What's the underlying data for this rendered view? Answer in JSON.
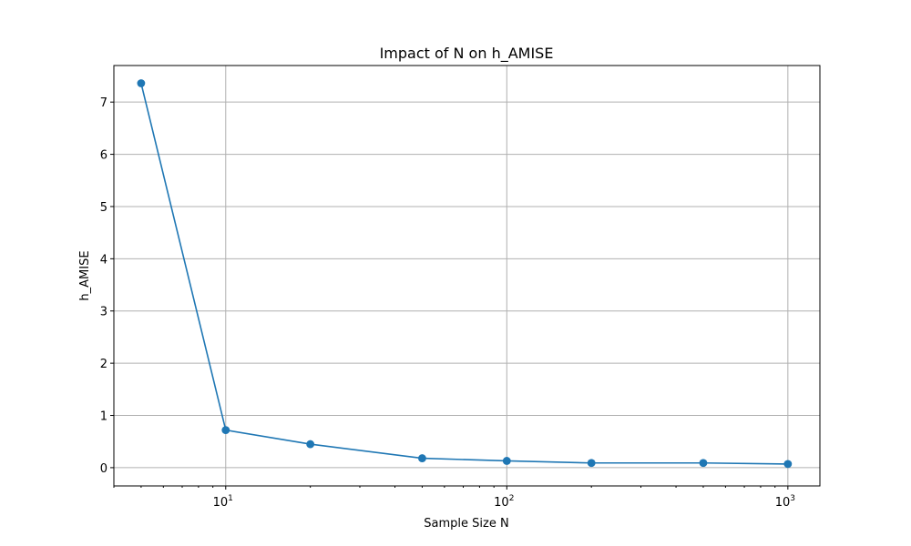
{
  "chart_data": {
    "type": "line",
    "title": "Impact of N on h_AMISE",
    "xlabel": "Sample Size N",
    "ylabel": "h_AMISE",
    "xscale": "log",
    "xlim": [
      4,
      1300
    ],
    "ylim": [
      -0.35,
      7.7
    ],
    "grid": true,
    "x_ticks": [
      {
        "base": "10",
        "exp": "1",
        "value": 10
      },
      {
        "base": "10",
        "exp": "2",
        "value": 100
      },
      {
        "base": "10",
        "exp": "3",
        "value": 1000
      }
    ],
    "y_ticks": [
      0,
      1,
      2,
      3,
      4,
      5,
      6,
      7
    ],
    "series": [
      {
        "color": "#1f77b4",
        "marker": "circle",
        "x": [
          5,
          10,
          20,
          50,
          100,
          200,
          500,
          1000
        ],
        "y": [
          7.36,
          0.72,
          0.45,
          0.18,
          0.13,
          0.09,
          0.09,
          0.07
        ]
      }
    ]
  }
}
